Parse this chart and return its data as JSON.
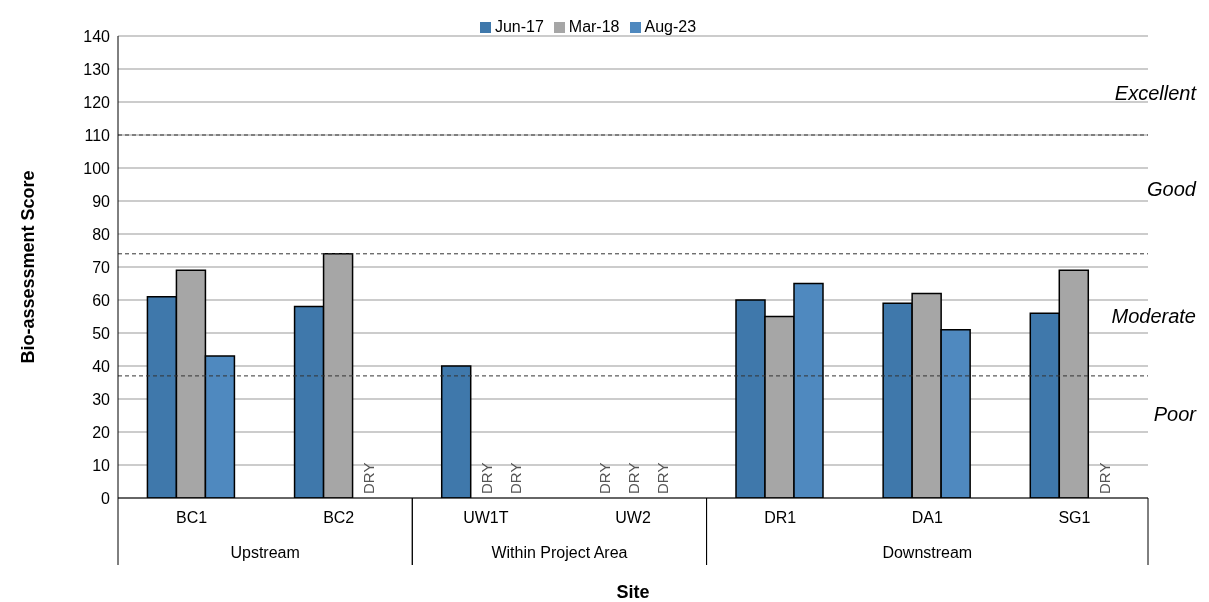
{
  "chart_data": {
    "type": "bar",
    "xlabel": "Site",
    "ylabel": "Bio-assessment Score",
    "categories": [
      "BC1",
      "BC2",
      "UW1T",
      "UW2",
      "DR1",
      "DA1",
      "SG1"
    ],
    "series": [
      {
        "name": "Jun-17",
        "color": "#3f78ab",
        "values": [
          61,
          58,
          40,
          null,
          60,
          59,
          56
        ],
        "value_labels": [
          null,
          null,
          null,
          "DRY",
          null,
          null,
          null
        ]
      },
      {
        "name": "Mar-18",
        "color": "#a6a6a6",
        "values": [
          69,
          74,
          null,
          null,
          55,
          62,
          69
        ],
        "value_labels": [
          null,
          null,
          "DRY",
          "DRY",
          null,
          null,
          null
        ]
      },
      {
        "name": "Aug-23",
        "color": "#4f89bf",
        "values": [
          43,
          null,
          null,
          null,
          65,
          51,
          null
        ],
        "value_labels": [
          null,
          "DRY",
          "DRY",
          "DRY",
          null,
          null,
          "DRY"
        ]
      }
    ],
    "ylim": [
      0,
      140
    ],
    "yticks": [
      0,
      10,
      20,
      30,
      40,
      50,
      60,
      70,
      80,
      90,
      100,
      110,
      120,
      130,
      140
    ],
    "grid": "y",
    "legend": "top",
    "ref_lines": [
      {
        "axis": "y",
        "value": 110,
        "line_style": "dashed",
        "color": "#333333"
      },
      {
        "axis": "y",
        "value": 74,
        "line_style": "dashed",
        "color": "#333333"
      },
      {
        "axis": "y",
        "value": 37,
        "line_style": "dashed",
        "color": "#333333"
      }
    ],
    "annotations": [
      "Upstream",
      "Within Project Area",
      "Downstream",
      "Excellent",
      "Good",
      "Moderate",
      "Poor"
    ]
  }
}
